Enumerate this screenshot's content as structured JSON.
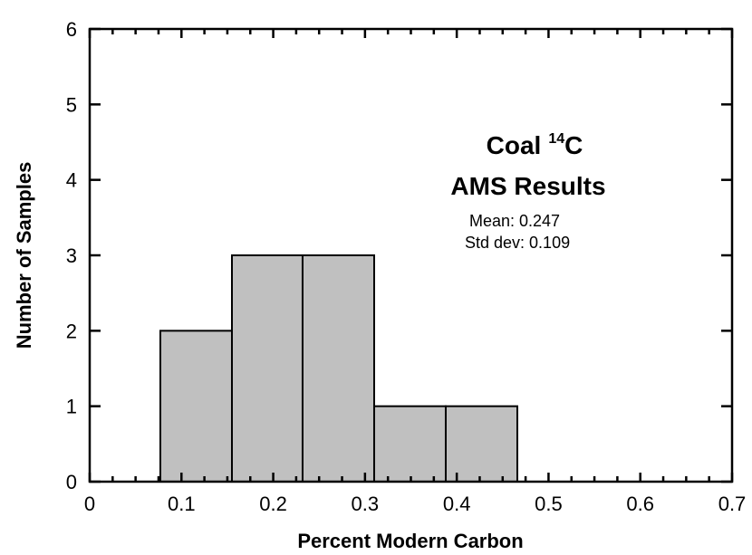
{
  "chart_data": {
    "type": "histogram",
    "title": {
      "prefix": "Coal",
      "superscript": "14",
      "suffix": "C"
    },
    "subtitle": "AMS Results",
    "annotations": [
      "Mean: 0.247",
      "Std dev: 0.109"
    ],
    "x_label": "Percent Modern Carbon",
    "y_label": "Number of Samples",
    "bins": [
      0.077,
      0.155,
      0.232,
      0.31,
      0.388,
      0.466
    ],
    "values": [
      2,
      3,
      3,
      1,
      1
    ],
    "color": "#c0c0c0",
    "xlim": [
      0,
      0.7
    ],
    "xticks": [
      0,
      0.1,
      0.2,
      0.3,
      0.4,
      0.5,
      0.6,
      0.7
    ],
    "xminorticks": [
      0.025,
      0.05,
      0.075,
      0.125,
      0.15,
      0.175,
      0.225,
      0.25,
      0.275,
      0.325,
      0.35,
      0.375,
      0.425,
      0.45,
      0.475,
      0.525,
      0.55,
      0.575,
      0.625,
      0.65,
      0.675
    ],
    "ylim": [
      0,
      6
    ],
    "yticks": [
      0,
      1,
      2,
      3,
      4,
      5,
      6
    ]
  }
}
